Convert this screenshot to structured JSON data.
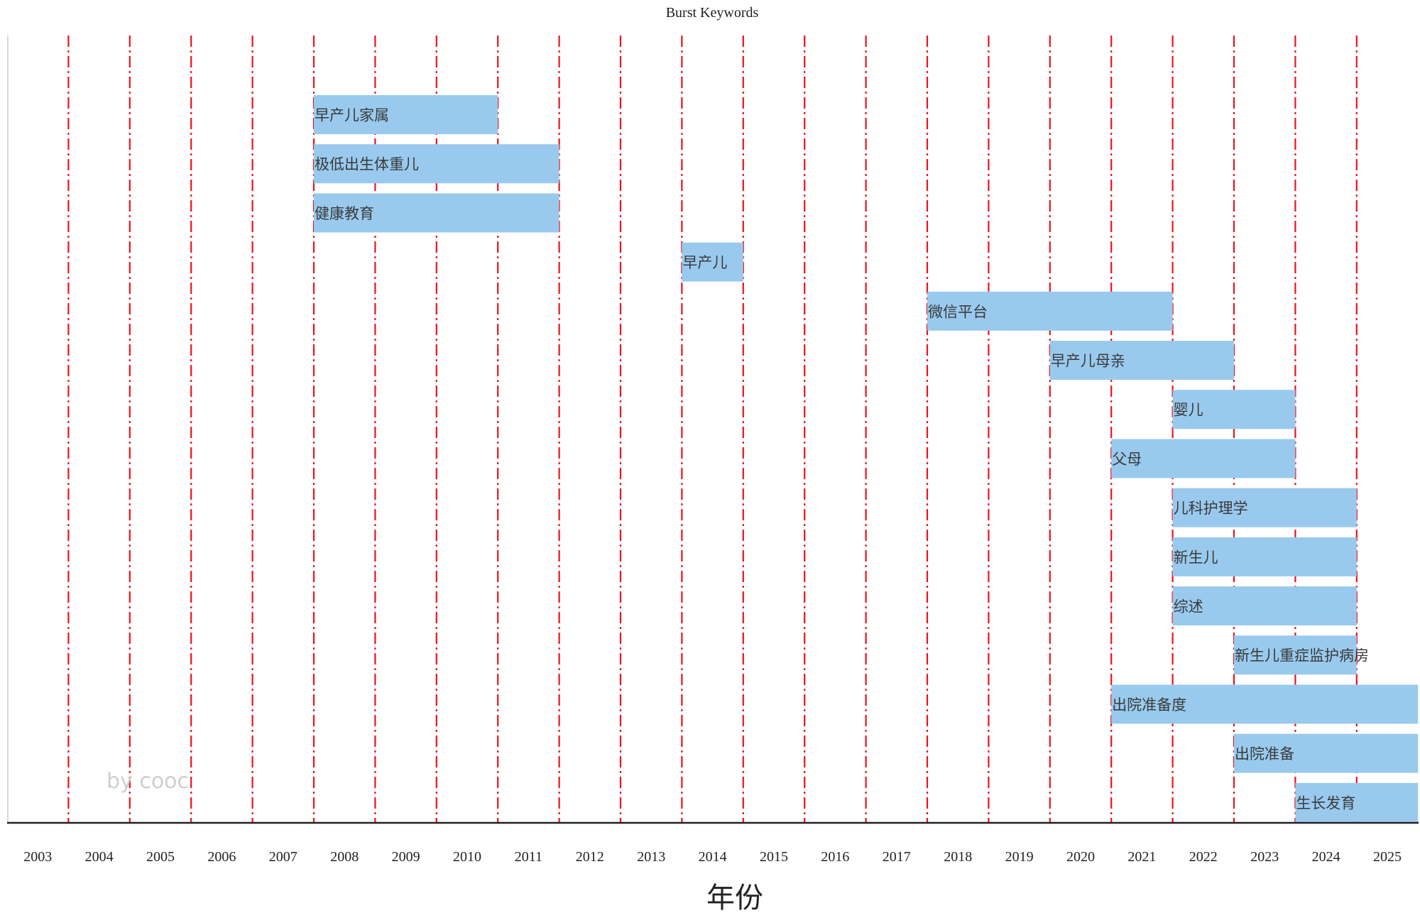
{
  "chart_data": {
    "type": "bar",
    "subtype": "burst-timeline",
    "title": "Burst Keywords",
    "xlabel": "年份",
    "ylabel": "",
    "watermark": "by cooc",
    "grid": "vertical dash-dot red lines at year boundaries",
    "colors": {
      "bar": "#99caee",
      "grid": "#e8141c",
      "axis": "#222222"
    },
    "years": [
      "2003",
      "2004",
      "2005",
      "2006",
      "2007",
      "2008",
      "2009",
      "2010",
      "2011",
      "2012",
      "2013",
      "2014",
      "2015",
      "2016",
      "2017",
      "2018",
      "2019",
      "2020",
      "2021",
      "2022",
      "2023",
      "2024",
      "2025"
    ],
    "bursts": [
      {
        "keyword": "早产儿家属",
        "start": 2008,
        "end": 2010
      },
      {
        "keyword": "极低出生体重儿",
        "start": 2008,
        "end": 2011
      },
      {
        "keyword": "健康教育",
        "start": 2008,
        "end": 2011
      },
      {
        "keyword": "早产儿",
        "start": 2014,
        "end": 2014
      },
      {
        "keyword": "微信平台",
        "start": 2018,
        "end": 2021
      },
      {
        "keyword": "早产儿母亲",
        "start": 2020,
        "end": 2022
      },
      {
        "keyword": "婴儿",
        "start": 2022,
        "end": 2023
      },
      {
        "keyword": "父母",
        "start": 2021,
        "end": 2023
      },
      {
        "keyword": "儿科护理学",
        "start": 2022,
        "end": 2024
      },
      {
        "keyword": "新生儿",
        "start": 2022,
        "end": 2024
      },
      {
        "keyword": "综述",
        "start": 2022,
        "end": 2024
      },
      {
        "keyword": "新生儿重症监护病房",
        "start": 2023,
        "end": 2024
      },
      {
        "keyword": "出院准备度",
        "start": 2021,
        "end": 2025
      },
      {
        "keyword": "出院准备",
        "start": 2023,
        "end": 2025
      },
      {
        "keyword": "生长发育",
        "start": 2024,
        "end": 2025
      }
    ]
  }
}
